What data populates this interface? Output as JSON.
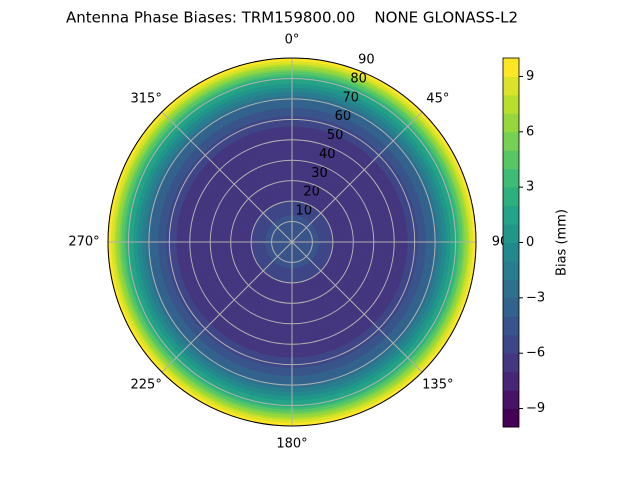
{
  "chart_data": {
    "type": "polar-contour",
    "title": "Antenna Phase Biases: TRM159800.00    NONE GLONASS-L2",
    "zenith": [
      0,
      10,
      20,
      30,
      40,
      50,
      60,
      70,
      80,
      90
    ],
    "bias": [
      -4,
      -4.5,
      -6,
      -6.5,
      -7,
      -7,
      -5.5,
      -3,
      2,
      10
    ],
    "rlim": [
      0,
      90
    ],
    "rticks": [
      10,
      20,
      30,
      40,
      50,
      60,
      70,
      80,
      90
    ],
    "thetaticks": [
      {
        "value": 0,
        "label": "0°"
      },
      {
        "value": 45,
        "label": "45°"
      },
      {
        "value": 90,
        "label": "90"
      },
      {
        "value": 135,
        "label": "135°"
      },
      {
        "value": 180,
        "label": "180°"
      },
      {
        "value": 225,
        "label": "225°"
      },
      {
        "value": 270,
        "label": "270°"
      },
      {
        "value": 315,
        "label": "315°"
      }
    ],
    "theta_direction": "clockwise",
    "theta_zero": "north",
    "grid": true,
    "colormap": "viridis",
    "levels": [
      -10,
      -9,
      -8,
      -7,
      -6,
      -5,
      -4,
      -3,
      -2,
      -1,
      0,
      1,
      2,
      3,
      4,
      5,
      6,
      7,
      8,
      9,
      10
    ],
    "colorbar": {
      "label": "Bias (mm)",
      "ylim": [
        -10,
        10
      ],
      "yticks": [
        {
          "value": -9,
          "label": "−9"
        },
        {
          "value": -6,
          "label": "−6"
        },
        {
          "value": -3,
          "label": "−3"
        },
        0,
        3,
        6,
        9
      ]
    }
  }
}
